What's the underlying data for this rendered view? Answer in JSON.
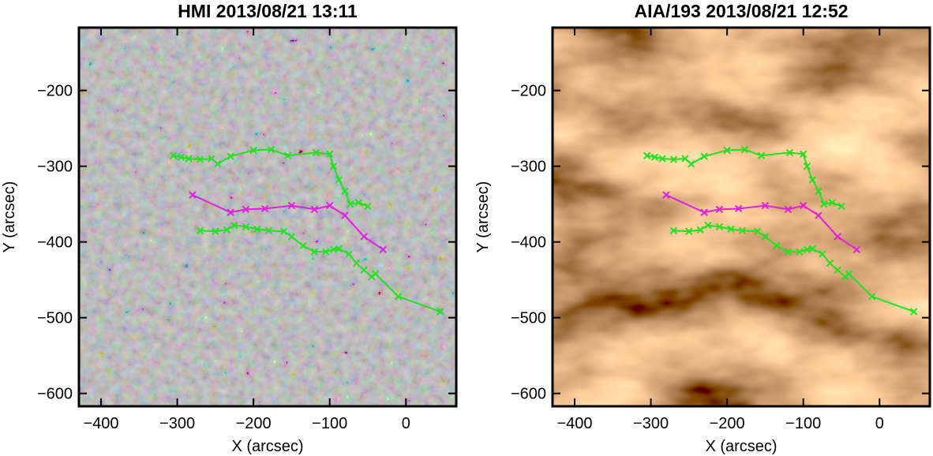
{
  "chart_data": [
    {
      "type": "line",
      "title": "HMI 2013/08/21 13:11",
      "xlabel": "X (arcsec)",
      "ylabel": "Y (arcsec)",
      "background": "magnetogram",
      "xlim": [
        -429,
        66
      ],
      "ylim": [
        -617,
        -117
      ],
      "xticks": [
        {
          "value": -400,
          "label": "−400"
        },
        {
          "value": -300,
          "label": "−300"
        },
        {
          "value": -200,
          "label": "−200"
        },
        {
          "value": -100,
          "label": "−100"
        },
        0
      ],
      "yticks": [
        {
          "value": -600,
          "label": "−600"
        },
        {
          "value": -500,
          "label": "−500"
        },
        {
          "value": -400,
          "label": "−400"
        },
        {
          "value": -300,
          "label": "−300"
        },
        {
          "value": -200,
          "label": "−200"
        }
      ],
      "series": [
        {
          "color": "#22e022",
          "x": [
            -305,
            -295,
            -285,
            -270,
            -255,
            -247,
            -230,
            -200,
            -177,
            -155,
            -118,
            -100,
            -95,
            -88,
            -80,
            -73,
            -62,
            -50
          ],
          "values": [
            -286,
            -288,
            -290,
            -291,
            -290,
            -297,
            -287,
            -279,
            -278,
            -286,
            -282,
            -284,
            -300,
            -318,
            -333,
            -350,
            -348,
            -353
          ]
        },
        {
          "color": "#e020e0",
          "x": [
            -280,
            -230,
            -210,
            -185,
            -150,
            -120,
            -100,
            -80,
            -55,
            -30
          ],
          "values": [
            -338,
            -361,
            -357,
            -356,
            -352,
            -357,
            -352,
            -365,
            -393,
            -410
          ]
        },
        {
          "color": "#22e022",
          "x": [
            -270,
            -250,
            -235,
            -225,
            -210,
            -195,
            -180,
            -160,
            -150,
            -135,
            -120,
            -105,
            -95,
            -88,
            -75,
            -65,
            -55,
            -45,
            -40,
            -10,
            45
          ],
          "values": [
            -385,
            -386,
            -384,
            -378,
            -380,
            -383,
            -385,
            -386,
            -393,
            -405,
            -413,
            -413,
            -410,
            -409,
            -416,
            -428,
            -437,
            -446,
            -442,
            -472,
            -492
          ]
        }
      ]
    },
    {
      "type": "line",
      "title": "AIA/193 2013/08/21 12:52",
      "xlabel": "X (arcsec)",
      "ylabel": "Y (arcsec)",
      "background": "euv",
      "xlim": [
        -429,
        66
      ],
      "ylim": [
        -617,
        -117
      ],
      "xticks": [
        {
          "value": -400,
          "label": "−400"
        },
        {
          "value": -300,
          "label": "−300"
        },
        {
          "value": -200,
          "label": "−200"
        },
        {
          "value": -100,
          "label": "−100"
        },
        0
      ],
      "yticks": [
        {
          "value": -600,
          "label": "−600"
        },
        {
          "value": -500,
          "label": "−500"
        },
        {
          "value": -400,
          "label": "−400"
        },
        {
          "value": -300,
          "label": "−300"
        },
        {
          "value": -200,
          "label": "−200"
        }
      ],
      "series": [
        {
          "color": "#22e022",
          "x": [
            -305,
            -295,
            -285,
            -270,
            -255,
            -247,
            -230,
            -200,
            -177,
            -155,
            -118,
            -100,
            -95,
            -88,
            -80,
            -73,
            -62,
            -50
          ],
          "values": [
            -286,
            -288,
            -290,
            -291,
            -290,
            -297,
            -287,
            -279,
            -278,
            -286,
            -282,
            -284,
            -300,
            -318,
            -333,
            -350,
            -348,
            -353
          ]
        },
        {
          "color": "#e020e0",
          "x": [
            -280,
            -230,
            -210,
            -185,
            -150,
            -120,
            -100,
            -80,
            -55,
            -30
          ],
          "values": [
            -338,
            -361,
            -357,
            -356,
            -352,
            -357,
            -352,
            -365,
            -393,
            -410
          ]
        },
        {
          "color": "#22e022",
          "x": [
            -270,
            -250,
            -235,
            -225,
            -210,
            -195,
            -180,
            -160,
            -150,
            -135,
            -120,
            -105,
            -95,
            -88,
            -75,
            -65,
            -55,
            -45,
            -40,
            -10,
            45
          ],
          "values": [
            -385,
            -386,
            -384,
            -378,
            -380,
            -383,
            -385,
            -386,
            -393,
            -405,
            -413,
            -413,
            -410,
            -409,
            -416,
            -428,
            -437,
            -446,
            -442,
            -472,
            -492
          ]
        }
      ]
    }
  ]
}
